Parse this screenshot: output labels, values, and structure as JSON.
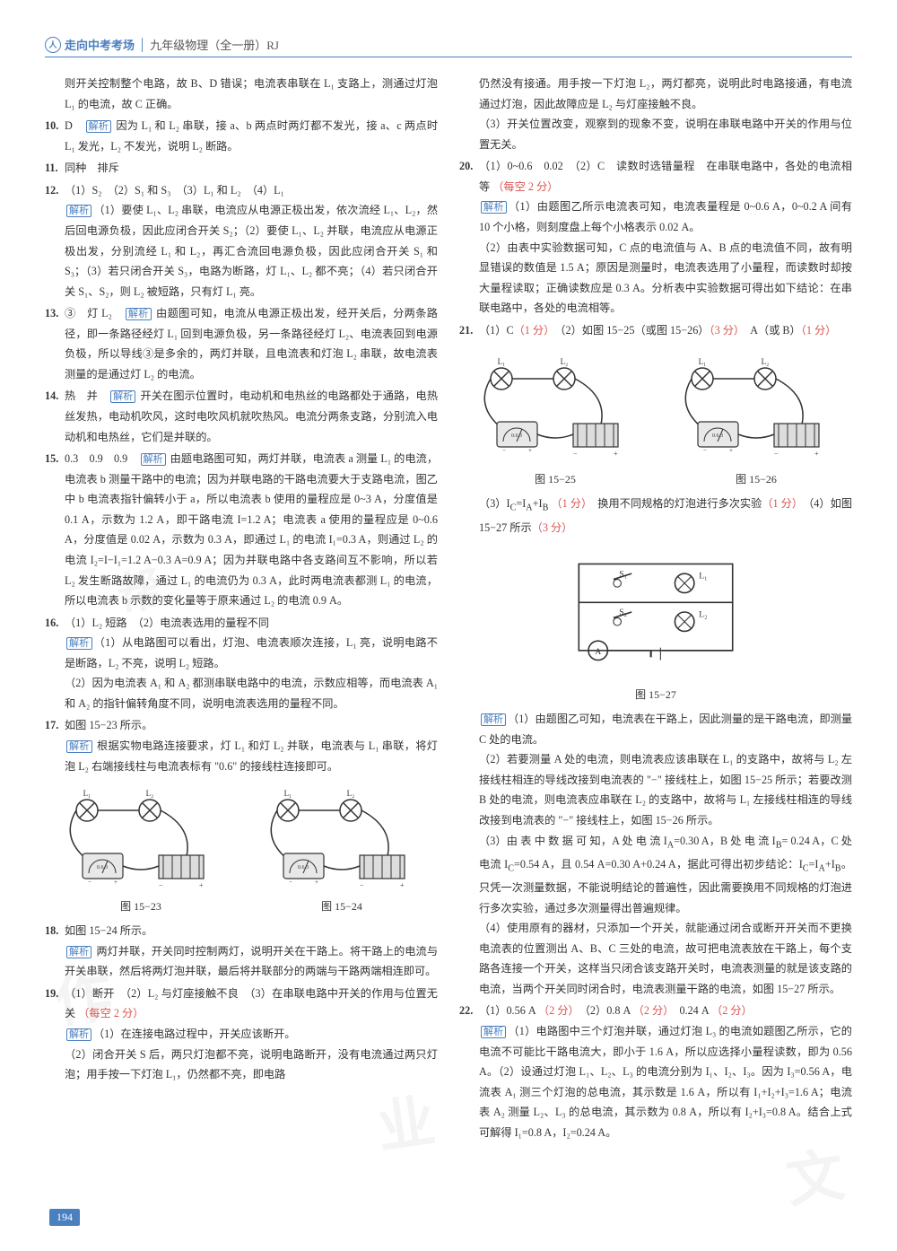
{
  "header": {
    "logo_char": "人",
    "title_bold": "走向中考考场",
    "separator": "│",
    "subtitle": "九年级物理（全一册）RJ"
  },
  "left_column": [
    {
      "num": "",
      "text": "则开关控制整个电路，故 B、D 错误；电流表串联在 L₁ 支路上，测通过灯泡 L₁ 的电流，故 C 正确。"
    },
    {
      "num": "10.",
      "text": "D　<span class='analysis'>解析</span> 因为 L₁ 和 L₂ 串联，接 a、b 两点时两灯都不发光，接 a、c 两点时 L₁ 发光，L₂ 不发光，说明 L₂ 断路。"
    },
    {
      "num": "11.",
      "text": "同种　排斥"
    },
    {
      "num": "12.",
      "text": "（1）S₂　（2）S₁ 和 S₃　（3）L₁ 和 L₂　（4）L₁<br><span class='analysis'>解析</span>（1）要使 L₁、L₂ 串联，电流应从电源正极出发，依次流经 L₁、L₂，然后回电源负极，因此应闭合开关 S₂；（2）要使 L₁、L₂ 并联，电流应从电源正极出发，分别流经 L₁ 和 L₂，再汇合流回电源负极，因此应闭合开关 S₁ 和 S₃；（3）若只闭合开关 S₃，电路为断路，灯 L₁、L₂ 都不亮；（4）若只闭合开关 S₁、S₂，则 L₂ 被短路，只有灯 L₁ 亮。"
    },
    {
      "num": "13.",
      "text": "③　灯 L₂　<span class='analysis'>解析</span> 由题图可知，电流从电源正极出发，经开关后，分两条路径，即一条路径经灯 L₁ 回到电源负极，另一条路径经灯 L₂、电流表回到电源负极，所以导线③是多余的，两灯并联，且电流表和灯泡 L₂ 串联，故电流表测量的是通过灯 L₂ 的电流。"
    },
    {
      "num": "14.",
      "text": "热　并　<span class='analysis'>解析</span> 开关在图示位置时，电动机和电热丝的电路都处于通路，电热丝发热，电动机吹风，这时电吹风机就吹热风。电流分两条支路，分别流入电动机和电热丝，它们是并联的。"
    },
    {
      "num": "15.",
      "text": "0.3　0.9　0.9　<span class='analysis'>解析</span> 由题电路图可知，两灯并联，电流表 a 测量 L₁ 的电流，电流表 b 测量干路中的电流；因为并联电路的干路电流要大于支路电流，图乙中 b 电流表指针偏转小于 a，所以电流表 b 使用的量程应是 0~3 A，分度值是 0.1 A，示数为 1.2 A，即干路电流 I=1.2 A；电流表 a 使用的量程应是 0~0.6 A，分度值是 0.02 A，示数为 0.3 A，即通过 L₁ 的电流 I₁=0.3 A，则通过 L₂ 的电流 I₂=I−I₁=1.2 A−0.3 A=0.9 A；因为并联电路中各支路间互不影响，所以若 L₂ 发生断路故障，通过 L₁ 的电流仍为 0.3 A，此时两电流表都测 L₁ 的电流，所以电流表 b 示数的变化量等于原来通过 L₂ 的电流 0.9 A。"
    },
    {
      "num": "16.",
      "text": "（1）L₂ 短路　（2）电流表选用的量程不同<br><span class='analysis'>解析</span>（1）从电路图可以看出，灯泡、电流表顺次连接，L₁ 亮，说明电路不是断路，L₂ 不亮，说明 L₂ 短路。<br>（2）因为电流表 A₁ 和 A₂ 都测串联电路中的电流，示数应相等，而电流表 A₁ 和 A₂ 的指针偏转角度不同，说明电流表选用的量程不同。"
    },
    {
      "num": "17.",
      "text": "如图 15−23 所示。<br><span class='analysis'>解析</span> 根据实物电路连接要求，灯 L₁ 和灯 L₂ 并联，电流表与 L₁ 串联，将灯泡 L₂ 右端接线柱与电流表标有 \"0.6\" 的接线柱连接即可。"
    },
    {
      "num": "FIG",
      "text": "fig_15_23_24"
    },
    {
      "num": "18.",
      "text": "如图 15−24 所示。<br><span class='analysis'>解析</span> 两灯并联，开关同时控制两灯，说明开关在干路上。将干路上的电流与开关串联，然后将两灯泡并联，最后将并联部分的两端与干路两端相连即可。"
    },
    {
      "num": "19.",
      "text": "（1）断开　（2）L₂ 与灯座接触不良　（3）在串联电路中开关的作用与位置无关 <span class='score'>（每空 2 分）</span><br><span class='analysis'>解析</span>（1）在连接电路过程中，开关应该断开。<br>（2）闭合开关 S 后，两只灯泡都不亮，说明电路断开，没有电流通过两只灯泡；用手按一下灯泡 L₁，仍然都不亮，即电路"
    }
  ],
  "right_column": [
    {
      "num": "",
      "text": "仍然没有接通。用手按一下灯泡 L₂，两灯都亮，说明此时电路接通，有电流通过灯泡，因此故障应是 L₂ 与灯座接触不良。<br>（3）开关位置改变，观察到的现象不变，说明在串联电路中开关的作用与位置无关。"
    },
    {
      "num": "20.",
      "text": "（1）0~0.6　0.02　（2）C　读数时选错量程　在串联电路中，各处的电流相等 <span class='score'>（每空 2 分）</span><br><span class='analysis'>解析</span>（1）由题图乙所示电流表可知，电流表量程是 0~0.6 A，0~0.2 A 间有 10 个小格，则刻度盘上每个小格表示 0.02 A。<br>（2）由表中实验数据可知，C 点的电流值与 A、B 点的电流值不同，故有明显错误的数值是 1.5 A；原因是测量时，电流表选用了小量程，而读数时却按大量程读取；正确读数应是 0.3 A。分析表中实验数据可得出如下结论：在串联电路中，各处的电流相等。"
    },
    {
      "num": "21.",
      "text": "（1）C<span class='score'>（1 分）</span>　（2）如图 15−25（或图 15−26）<span class='score'>（3 分）</span>　A（或 B）<span class='score'>（1 分）</span>"
    },
    {
      "num": "FIG",
      "text": "fig_15_25_26"
    },
    {
      "num": "",
      "text": "（3）I<sub>C</sub>=I<sub>A</sub>+I<sub>B</sub> <span class='score'>（1 分）</span>　换用不同规格的灯泡进行多次实验<span class='score'>（1 分）</span>　（4）如图 15−27 所示<span class='score'>（3 分）</span>"
    },
    {
      "num": "FIG",
      "text": "fig_15_27"
    },
    {
      "num": "",
      "text": "<span class='analysis'>解析</span>（1）由题图乙可知，电流表在干路上，因此测量的是干路电流，即测量 C 处的电流。<br>（2）若要测量 A 处的电流，则电流表应该串联在 L₁ 的支路中，故将与 L₂ 左接线柱相连的导线改接到电流表的 \"−\" 接线柱上，如图 15−25 所示；若要改测 B 处的电流，则电流表应串联在 L₂ 的支路中，故将与 L₁ 左接线柱相连的导线改接到电流表的 \"−\" 接线柱上，如图 15−26 所示。<br>（3）由 表 中 数 据 可 知，A 处 电 流 I<sub>A</sub>=0.30 A，B 处 电 流 I<sub>B</sub>= 0.24 A，C 处电流 I<sub>C</sub>=0.54 A，且 0.54 A=0.30 A+0.24 A，据此可得出初步结论：I<sub>C</sub>=I<sub>A</sub>+I<sub>B</sub>。只凭一次测量数据，不能说明结论的普遍性，因此需要换用不同规格的灯泡进行多次实验，通过多次测量得出普遍规律。<br>（4）使用原有的器材，只添加一个开关，就能通过闭合或断开开关而不更换电流表的位置测出 A、B、C 三处的电流，故可把电流表放在干路上，每个支路各连接一个开关，这样当只闭合该支路开关时，电流表测量的就是该支路的电流，当两个开关同时闭合时，电流表测量干路的电流，如图 15−27 所示。"
    },
    {
      "num": "22.",
      "text": "（1）0.56 A <span class='score'>（2 分）</span>　（2）0.8 A <span class='score'>（2 分）</span>　0.24 A <span class='score'>（2 分）</span><br><span class='analysis'>解析</span>（1）电路图中三个灯泡并联，通过灯泡 L₃ 的电流如题图乙所示，它的电流不可能比干路电流大，即小于 1.6 A，所以应选择小量程读数，即为 0.56 A。（2）设通过灯泡 L₁、L₂、L₃ 的电流分别为 I₁、I₂、I₃。因为 I₃=0.56 A，电流表 A₁ 测三个灯泡的总电流，其示数是 1.6 A，所以有 I₁+I₂+I₃=1.6 A；电流表 A₂ 测量 L₂、L₃ 的总电流，其示数为 0.8 A，所以有 I₂+I₃=0.8 A。结合上式可解得 I₁=0.8 A，I₂=0.24 A。"
    }
  ],
  "figures": {
    "fig_15_23_24": {
      "left_caption": "图 15−23",
      "right_caption": "图 15−24"
    },
    "fig_15_25_26": {
      "left_caption": "图 15−25",
      "right_caption": "图 15−26"
    },
    "fig_15_27": {
      "caption": "图 15−27"
    }
  },
  "page_number": "194",
  "colors": {
    "accent": "#4a7fc0",
    "text": "#333333",
    "score": "#d9534f",
    "bg": "#ffffff"
  }
}
